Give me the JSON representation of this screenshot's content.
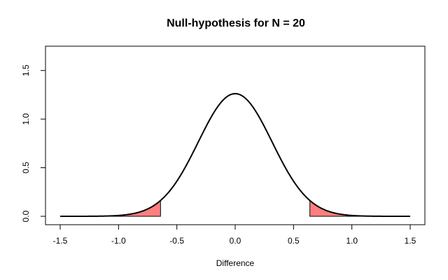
{
  "chart_data": {
    "type": "line",
    "title": "Null-hypothesis for N =  20",
    "xlabel": "Difference",
    "ylabel": "",
    "xlim": [
      -1.5,
      1.5
    ],
    "ylim": [
      0,
      1.75
    ],
    "x_ticks": [
      -1.5,
      -1.0,
      -0.5,
      0.0,
      0.5,
      1.0,
      1.5
    ],
    "x_tick_labels": [
      "-1.5",
      "-1.0",
      "-0.5",
      "0.0",
      "0.5",
      "1.0",
      "1.5"
    ],
    "y_ticks": [
      0.0,
      0.5,
      1.0,
      1.5
    ],
    "y_tick_labels": [
      "0.0",
      "0.5",
      "1.0",
      "1.5"
    ],
    "series": [
      {
        "distribution": "normal",
        "mean": 0.0,
        "sd": 0.3162,
        "x_range": [
          -1.5,
          1.5
        ],
        "color": "#000000"
      }
    ],
    "shaded_regions": [
      {
        "x": [
          -1.5,
          -0.64
        ],
        "color": "#ff7f7f"
      },
      {
        "x": [
          0.64,
          1.5
        ],
        "color": "#ff7f7f"
      }
    ],
    "grid": false,
    "legend": "none"
  }
}
